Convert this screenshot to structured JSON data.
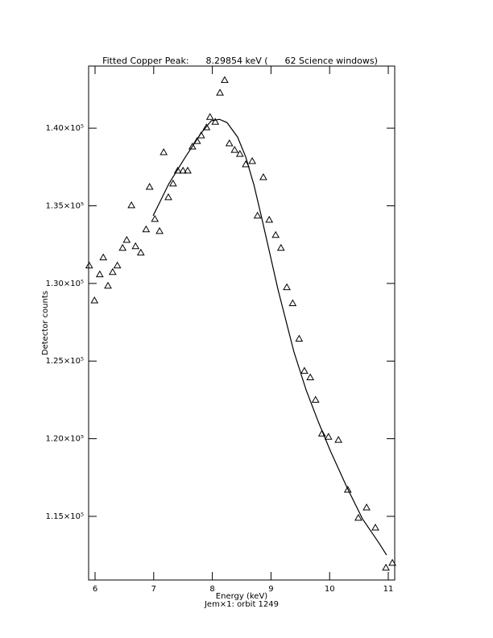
{
  "chart_data": {
    "type": "scatter",
    "title": "Fitted Copper Peak:      8.29854 keV (      62 Science windows)",
    "x_label": "Energy (keV)",
    "subtitle": "Jem×1: orbit 1249",
    "y_label": "Detector counts",
    "xlim": [
      5.89,
      11.11
    ],
    "ylim": [
      110900,
      144000
    ],
    "xticks": [
      6,
      7,
      8,
      9,
      10,
      11
    ],
    "yticks": [
      {
        "value": 115000,
        "label": "1.15×10⁵"
      },
      {
        "value": 120000,
        "label": "1.20×10⁵"
      },
      {
        "value": 125000,
        "label": "1.25×10⁵"
      },
      {
        "value": 130000,
        "label": "1.30×10⁵"
      },
      {
        "value": 135000,
        "label": "1.35×10⁵"
      },
      {
        "value": 140000,
        "label": "1.40×10⁵"
      }
    ],
    "color": "#000000",
    "points": {
      "x": [
        5.9,
        5.99,
        6.08,
        6.14,
        6.22,
        6.3,
        6.38,
        6.47,
        6.54,
        6.62,
        6.69,
        6.78,
        6.87,
        6.93,
        7.02,
        7.1,
        7.17,
        7.25,
        7.33,
        7.41,
        7.5,
        7.58,
        7.66,
        7.74,
        7.81,
        7.9,
        7.96,
        8.05,
        8.13,
        8.21,
        8.29,
        8.38,
        8.47,
        8.57,
        8.68,
        8.77,
        8.87,
        8.97,
        9.08,
        9.17,
        9.27,
        9.37,
        9.48,
        9.57,
        9.67,
        9.76,
        9.87,
        9.98,
        10.15,
        10.31,
        10.49,
        10.63,
        10.78,
        10.96,
        11.07
      ],
      "y": [
        131150,
        128900,
        130580,
        131670,
        129850,
        130730,
        131150,
        132290,
        132800,
        135030,
        132390,
        131980,
        133480,
        136220,
        134150,
        133370,
        138450,
        135550,
        136430,
        137260,
        137260,
        137260,
        138810,
        139170,
        139530,
        140050,
        140720,
        140410,
        142280,
        143100,
        139020,
        138600,
        138340,
        137670,
        137880,
        134360,
        136840,
        134100,
        133120,
        132290,
        129750,
        128720,
        126440,
        124370,
        123950,
        122500,
        120330,
        120120,
        119920,
        116710,
        114900,
        115570,
        114270,
        111690,
        112000
      ]
    },
    "fit": {
      "x": [
        6.99,
        7.26,
        7.54,
        7.81,
        7.98,
        8.12,
        8.25,
        8.43,
        8.57,
        8.71,
        8.84,
        8.98,
        9.12,
        9.26,
        9.39,
        9.6,
        9.81,
        10.01,
        10.29,
        10.56,
        10.84,
        10.97
      ],
      "y": [
        134360,
        136430,
        138140,
        139690,
        140470,
        140570,
        140360,
        139430,
        138140,
        136330,
        134250,
        131930,
        129600,
        127530,
        125610,
        123130,
        121060,
        119240,
        116910,
        114840,
        113290,
        112510
      ]
    }
  }
}
